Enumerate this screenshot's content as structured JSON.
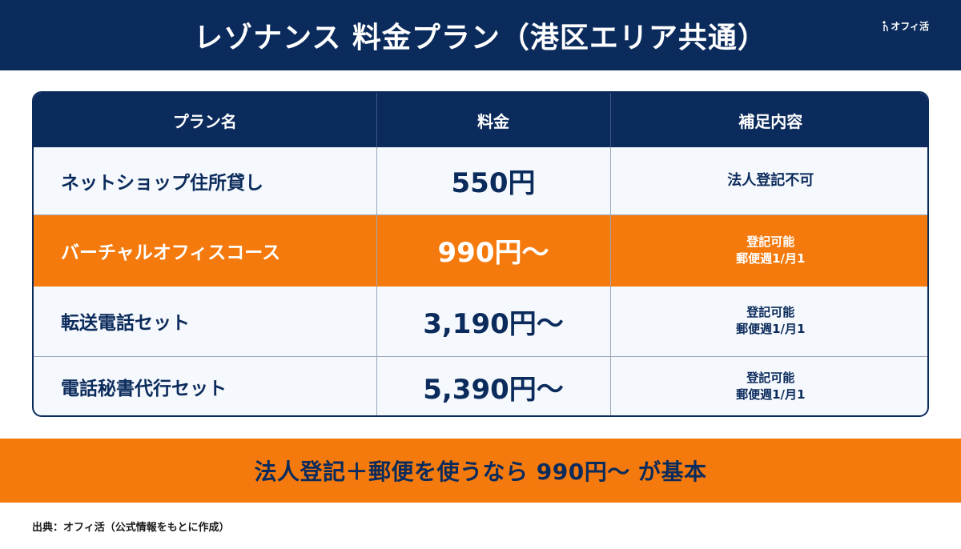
{
  "header": {
    "title": "レゾナンス 料金プラン（港区エリア共通）",
    "logo_text": "オフィ活",
    "logo_icon": "i-mark-icon"
  },
  "colors": {
    "navy": "#0b2b5c",
    "orange": "#f57a0d",
    "row_bg": "#f5f8fc"
  },
  "table": {
    "headers": [
      "プラン名",
      "料金",
      "補足内容"
    ],
    "rows": [
      {
        "plan": "ネットショップ住所貸し",
        "price": "550円",
        "note_line1": "法人登記不可",
        "note_line2": "",
        "highlight": false
      },
      {
        "plan": "バーチャルオフィスコース",
        "price": "990円〜",
        "note_line1": "登記可能",
        "note_line2": "郵便週1/月1",
        "highlight": true
      },
      {
        "plan": "転送電話セット",
        "price": "3,190円〜",
        "note_line1": "登記可能",
        "note_line2": "郵便週1/月1",
        "highlight": false
      },
      {
        "plan": "電話秘書代行セット",
        "price": "5,390円〜",
        "note_line1": "登記可能",
        "note_line2": "郵便週1/月1",
        "highlight": false
      }
    ]
  },
  "banner": {
    "text": "法人登記＋郵便を使うなら 990円〜 が基本"
  },
  "source": {
    "text": "出典：オフィ活（公式情報をもとに作成）"
  }
}
